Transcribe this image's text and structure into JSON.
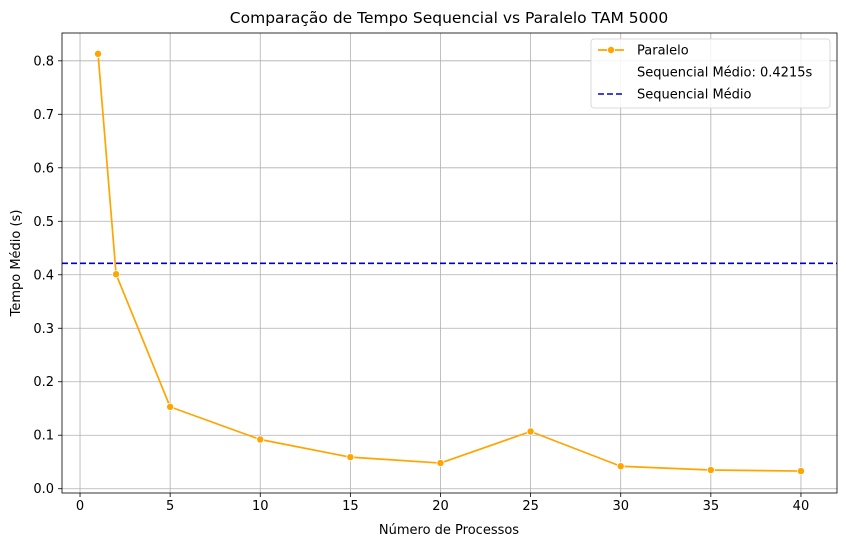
{
  "chart_data": {
    "type": "line",
    "title": "Comparação de Tempo Sequencial vs Paralelo TAM 5000",
    "xlabel": "Número de Processos",
    "ylabel": "Tempo Médio (s)",
    "xlim": [
      -1,
      42
    ],
    "ylim": [
      -0.008,
      0.852
    ],
    "xticks": [
      "0",
      "5",
      "10",
      "15",
      "20",
      "25",
      "30",
      "35",
      "40"
    ],
    "xtick_values": [
      0,
      5,
      10,
      15,
      20,
      25,
      30,
      35,
      40
    ],
    "yticks": [
      "0.0",
      "0.1",
      "0.2",
      "0.3",
      "0.4",
      "0.5",
      "0.6",
      "0.7",
      "0.8"
    ],
    "ytick_values": [
      0,
      0.1,
      0.2,
      0.3,
      0.4,
      0.5,
      0.6,
      0.7,
      0.8
    ],
    "grid": true,
    "legend_position": "top-right",
    "series": [
      {
        "name": "Paralelo",
        "color": "#ffa500",
        "marker": "circle",
        "x": [
          1,
          2,
          5,
          10,
          15,
          20,
          25,
          30,
          35,
          40
        ],
        "y": [
          0.813,
          0.401,
          0.153,
          0.092,
          0.059,
          0.048,
          0.107,
          0.042,
          0.035,
          0.033
        ]
      }
    ],
    "reference_lines": [
      {
        "name": "Sequencial Médio",
        "y": 0.4215,
        "color": "#0000cd",
        "style": "dashed"
      }
    ],
    "legend": [
      {
        "label": "Paralelo",
        "kind": "line-marker",
        "color": "#ffa500"
      },
      {
        "label": "Sequencial Médio: 0.4215s",
        "kind": "none",
        "color": ""
      },
      {
        "label": "Sequencial Médio",
        "kind": "dashed",
        "color": "#0000cd"
      }
    ]
  }
}
